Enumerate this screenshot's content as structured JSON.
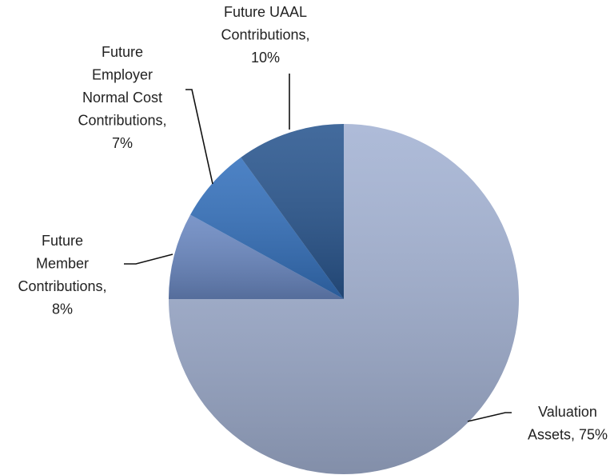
{
  "chart_data": {
    "type": "pie",
    "labels": [
      [
        "Valuation",
        "Assets, 75%"
      ],
      [
        "Future",
        "Member",
        "Contributions,",
        "8%"
      ],
      [
        "Future",
        "Employer",
        "Normal Cost",
        "Contributions,",
        "7%"
      ],
      [
        "Future UAAL",
        "Contributions,",
        "10%"
      ]
    ],
    "values": [
      75,
      8,
      7,
      10
    ],
    "colors": [
      "#a3b2d3",
      "#6a88c2",
      "#3471bd",
      "#29568f"
    ]
  }
}
